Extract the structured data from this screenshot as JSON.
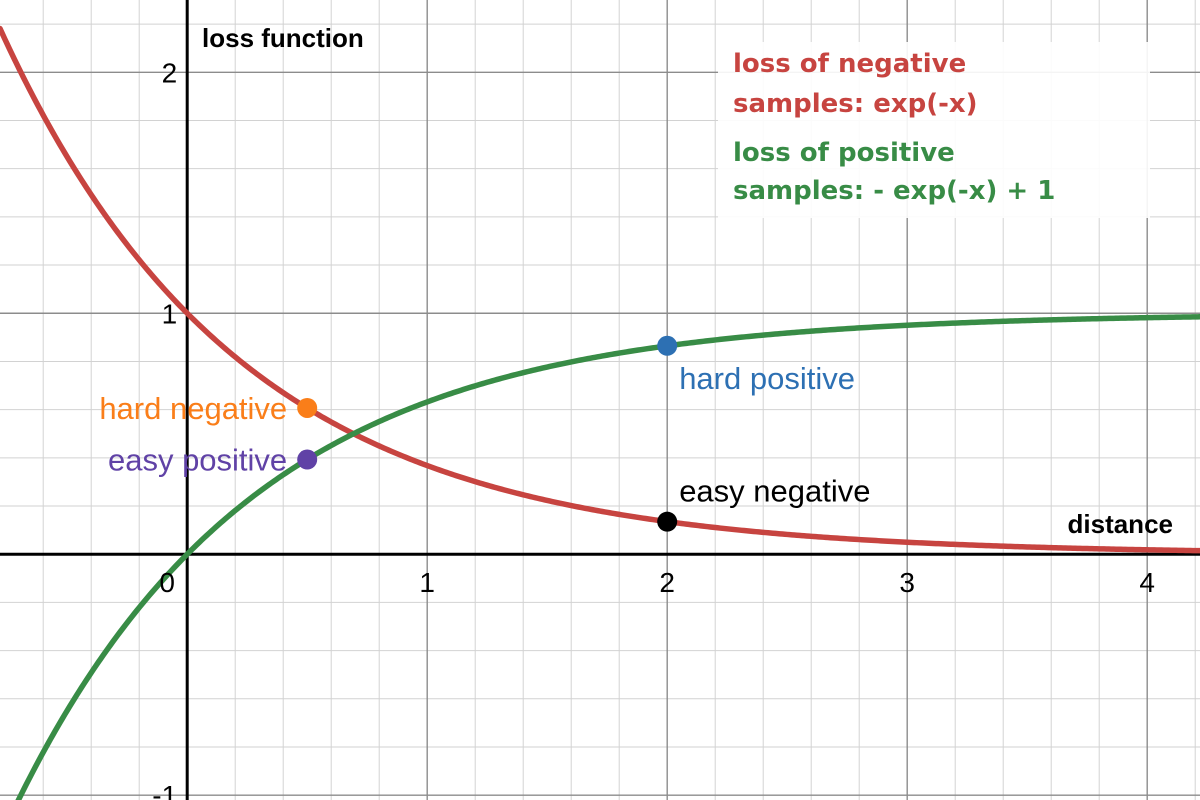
{
  "chart_data": {
    "type": "line",
    "xlabel": "distance",
    "ylabel": "loss function",
    "xlim": [
      -0.78,
      4.22
    ],
    "ylim": [
      -1.02,
      2.3
    ],
    "x_ticks": [
      {
        "value": 0,
        "label": "0"
      },
      {
        "value": 1,
        "label": "1"
      },
      {
        "value": 2,
        "label": "2"
      },
      {
        "value": 3,
        "label": "3"
      },
      {
        "value": 4,
        "label": "4"
      }
    ],
    "y_ticks": [
      {
        "value": 2,
        "label": "2"
      },
      {
        "value": 1,
        "label": "1"
      },
      {
        "value": -1,
        "label": "-1"
      }
    ],
    "grid": true,
    "minor_grid_step": 0.2,
    "series": [
      {
        "name": "loss of negative samples: exp(-x)",
        "formula": "exp(-x)",
        "color": "#c74440"
      },
      {
        "name": "loss of positive samples: - exp(-x) + 1",
        "formula": "-exp(-x)+1",
        "color": "#388c46"
      }
    ],
    "legend": {
      "position": "top-right",
      "lines": [
        {
          "text": "loss of negative",
          "color": "#c74440"
        },
        {
          "text": "samples: exp(-x)",
          "color": "#c74440"
        },
        {
          "text": "loss of positive",
          "color": "#388c46"
        },
        {
          "text": "samples: - exp(-x) + 1",
          "color": "#388c46"
        }
      ]
    },
    "points": [
      {
        "label": "hard negative",
        "x": 0.5,
        "y": 0.607,
        "color": "#fa7e19",
        "label_side": "left"
      },
      {
        "label": "easy positive",
        "x": 0.5,
        "y": 0.393,
        "color": "#6042a6",
        "label_side": "left"
      },
      {
        "label": "hard positive",
        "x": 2,
        "y": 0.865,
        "color": "#2d70b3",
        "label_side": "below-right"
      },
      {
        "label": "easy negative",
        "x": 2,
        "y": 0.135,
        "color": "#000000",
        "label_side": "above-right"
      }
    ]
  }
}
